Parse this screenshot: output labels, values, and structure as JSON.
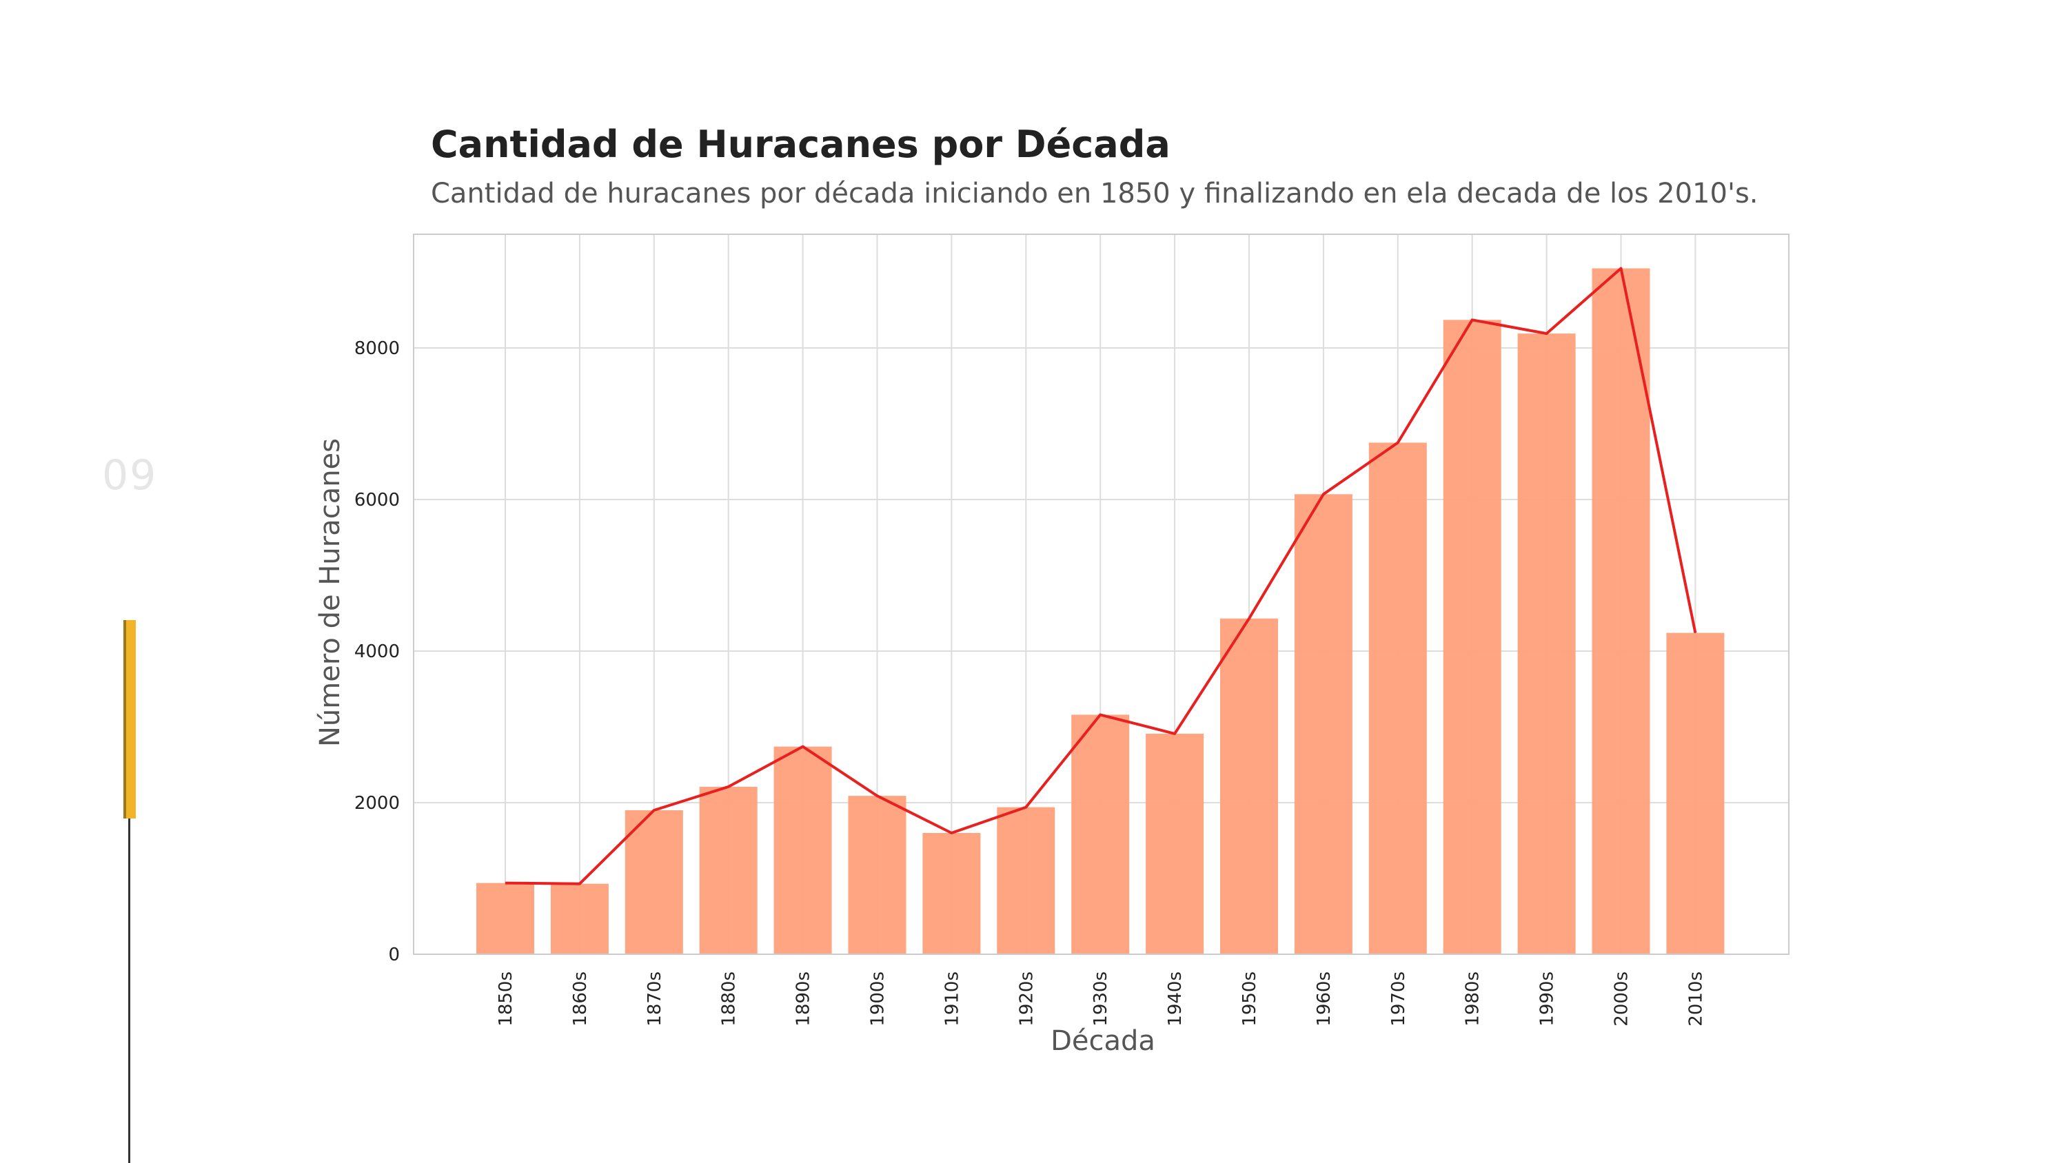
{
  "slide": {
    "number": "09"
  },
  "colors": {
    "bar": "#ffa07a",
    "line": "#e82020",
    "accent": "#f2b52a",
    "grid": "#dddddd"
  },
  "chart_data": {
    "type": "bar",
    "title": "Cantidad de Huracanes por Década",
    "subtitle": "Cantidad de huracanes por década iniciando en 1850 y finalizando en ela decada de los 2010's.",
    "xlabel": "Década",
    "ylabel": "Número de Huracanes",
    "categories": [
      "1850s",
      "1860s",
      "1870s",
      "1880s",
      "1890s",
      "1900s",
      "1910s",
      "1920s",
      "1930s",
      "1940s",
      "1950s",
      "1960s",
      "1970s",
      "1980s",
      "1990s",
      "2000s",
      "2010s"
    ],
    "values": [
      940,
      930,
      1900,
      2210,
      2740,
      2090,
      1600,
      1940,
      3160,
      2910,
      4430,
      6070,
      6750,
      8370,
      8190,
      9050,
      4240
    ],
    "overlay_line": {
      "type": "line",
      "values": [
        940,
        930,
        1900,
        2210,
        2740,
        2090,
        1600,
        1940,
        3160,
        2910,
        4430,
        6070,
        6750,
        8370,
        8190,
        9050,
        4240
      ]
    },
    "yticks": [
      0,
      2000,
      4000,
      6000,
      8000
    ],
    "ylim": [
      0,
      9500
    ],
    "grid": true,
    "legend": "none"
  }
}
